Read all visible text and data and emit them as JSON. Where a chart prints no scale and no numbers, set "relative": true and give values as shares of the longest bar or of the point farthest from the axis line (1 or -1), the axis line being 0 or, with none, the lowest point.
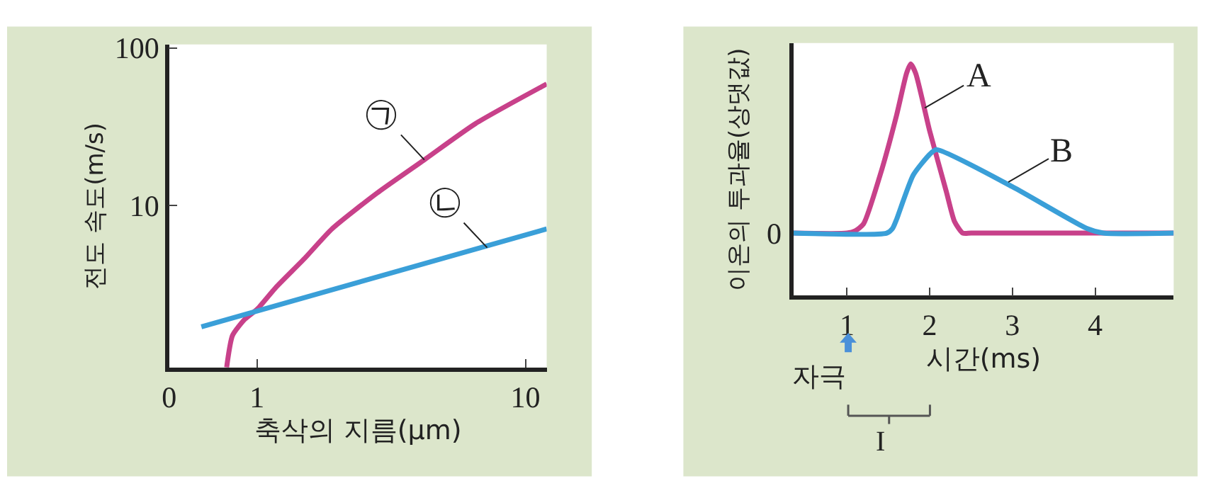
{
  "chart_data": [
    {
      "type": "line",
      "xlabel": "축삭의 지름(μm)",
      "ylabel": "전도 속도(m/s)",
      "log": "xy",
      "xlim": [
        0.47,
        12
      ],
      "ylim": [
        0.94,
        105
      ],
      "xticks": [
        {
          "value": 0.47,
          "label": "0"
        },
        1,
        10
      ],
      "yticks": [
        10,
        100
      ],
      "grid": false,
      "marker": "none",
      "line_style": "solid",
      "series": [
        {
          "color": "#c8418a",
          "x": [
            0.77,
            0.81,
            0.9,
            1.0,
            1.17,
            1.5,
            1.9,
            2.8,
            4.2,
            6.5,
            12
          ],
          "values": [
            0.94,
            1.5,
            1.9,
            2.2,
            3.0,
            4.6,
            7.1,
            12,
            19.5,
            33,
            59
          ]
        },
        {
          "color": "#3a9fd8",
          "x": [
            0.62,
            12
          ],
          "values": [
            1.7,
            7.1
          ]
        }
      ],
      "annotations": [
        {
          "text": "㉠",
          "x": 4.2,
          "y": 19.5
        },
        {
          "text": "㉡",
          "x": 7.2,
          "y": 5.4
        }
      ]
    },
    {
      "type": "line",
      "relative": true,
      "xlabel": "시간(ms)",
      "ylabel": "이온의 투과율(상댓값)",
      "xlim": [
        0.35,
        4.95
      ],
      "xticks": [
        1,
        2,
        3,
        4
      ],
      "grid": false,
      "marker": "none",
      "line_style": "solid",
      "series": [
        {
          "color": "#c8418a",
          "x": [
            0.35,
            1.0,
            1.1,
            1.2,
            1.4,
            1.6,
            1.72,
            1.77,
            1.83,
            2.0,
            2.2,
            2.3,
            2.4,
            2.5,
            4.95
          ],
          "values": [
            0.27,
            0.27,
            0.28,
            0.31,
            0.52,
            0.78,
            0.96,
            1,
            0.96,
            0.71,
            0.45,
            0.32,
            0.27,
            0.27,
            0.27
          ]
        },
        {
          "color": "#3a9fd8",
          "x": [
            0.35,
            1.48,
            1.55,
            1.6,
            1.8,
            2.0,
            2.08,
            3.0,
            3.9,
            4.1,
            4.95
          ],
          "values": [
            0.27,
            0.27,
            0.29,
            0.33,
            0.52,
            0.61,
            0.63,
            0.47,
            0.29,
            0.27,
            0.27
          ]
        }
      ],
      "annotations": [
        {
          "text": "A",
          "x": 1.94,
          "y": 0.81
        },
        {
          "text": "B",
          "x": 2.95,
          "y": 0.49
        },
        "자극",
        "0",
        "I"
      ]
    }
  ]
}
